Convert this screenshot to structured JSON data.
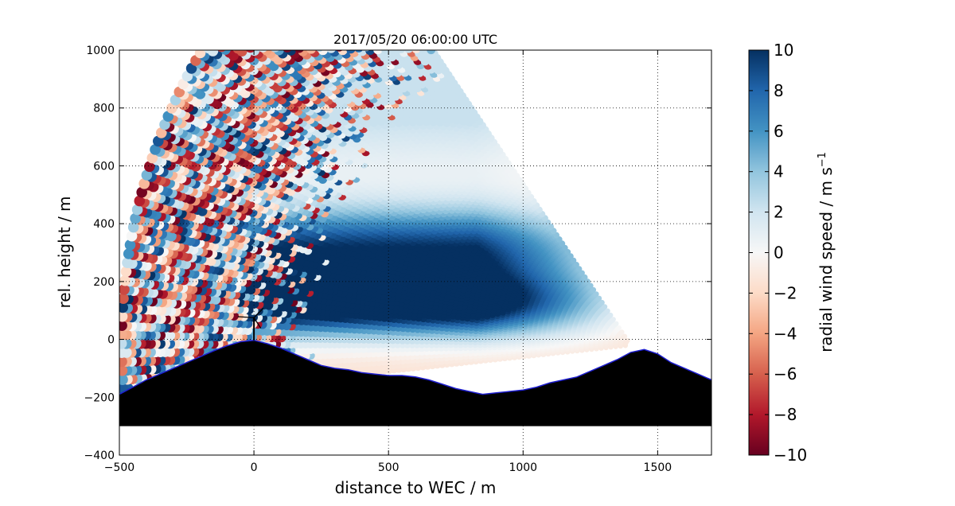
{
  "chart_data": {
    "type": "scatter",
    "title": "2017/05/20 06:00:00 UTC",
    "xlabel": "distance to WEC / m",
    "ylabel": "rel. height / m",
    "xlim": [
      -500,
      1700
    ],
    "ylim": [
      -400,
      1000
    ],
    "x_ticks": [
      "−500",
      "0",
      "500",
      "1000",
      "1500"
    ],
    "y_ticks": [
      "−400",
      "−200",
      "0",
      "200",
      "400",
      "600",
      "800",
      "1000"
    ],
    "grid": "dotted",
    "colorbar": {
      "label": "radial wind speed / m s",
      "label_exponent": "−1",
      "range": [
        -10,
        10
      ],
      "ticks": [
        "−10",
        "−8",
        "−6",
        "−4",
        "−2",
        "0",
        "2",
        "4",
        "6",
        "8",
        "10"
      ],
      "colormap": "RdBu",
      "colors": [
        "#67001f",
        "#b2182b",
        "#d6604d",
        "#f4a582",
        "#fddbc7",
        "#f7f7f7",
        "#d1e5f0",
        "#92c5de",
        "#4393c3",
        "#2166ac",
        "#053061"
      ]
    },
    "scan": {
      "origin_x": 1400,
      "origin_y": -20,
      "max_range": 1900,
      "beam_spacing": 18,
      "elevation_min_deg": -5.5,
      "elevation_max_deg": 54
    },
    "wind_jets": [
      {
        "height": 300,
        "max_speed": 10
      },
      {
        "height": 120,
        "max_speed": 10
      }
    ],
    "terrain": {
      "base": -300,
      "points": [
        [
          -500,
          -190
        ],
        [
          -450,
          -165
        ],
        [
          -400,
          -140
        ],
        [
          -350,
          -120
        ],
        [
          -300,
          -100
        ],
        [
          -250,
          -80
        ],
        [
          -200,
          -60
        ],
        [
          -150,
          -40
        ],
        [
          -100,
          -22
        ],
        [
          -50,
          -8
        ],
        [
          0,
          -3
        ],
        [
          50,
          -15
        ],
        [
          100,
          -30
        ],
        [
          150,
          -50
        ],
        [
          200,
          -70
        ],
        [
          250,
          -90
        ],
        [
          300,
          -100
        ],
        [
          350,
          -105
        ],
        [
          400,
          -115
        ],
        [
          450,
          -120
        ],
        [
          500,
          -125
        ],
        [
          550,
          -125
        ],
        [
          600,
          -130
        ],
        [
          650,
          -140
        ],
        [
          700,
          -155
        ],
        [
          750,
          -170
        ],
        [
          800,
          -180
        ],
        [
          850,
          -190
        ],
        [
          900,
          -185
        ],
        [
          950,
          -180
        ],
        [
          1000,
          -175
        ],
        [
          1050,
          -165
        ],
        [
          1100,
          -150
        ],
        [
          1150,
          -140
        ],
        [
          1200,
          -130
        ],
        [
          1250,
          -110
        ],
        [
          1300,
          -90
        ],
        [
          1350,
          -70
        ],
        [
          1400,
          -45
        ],
        [
          1450,
          -35
        ],
        [
          1500,
          -50
        ],
        [
          1550,
          -80
        ],
        [
          1600,
          -100
        ],
        [
          1650,
          -120
        ],
        [
          1700,
          -140
        ]
      ]
    },
    "turbine": {
      "x": 0,
      "hub_height": 75,
      "rotor_radius": 40
    }
  }
}
